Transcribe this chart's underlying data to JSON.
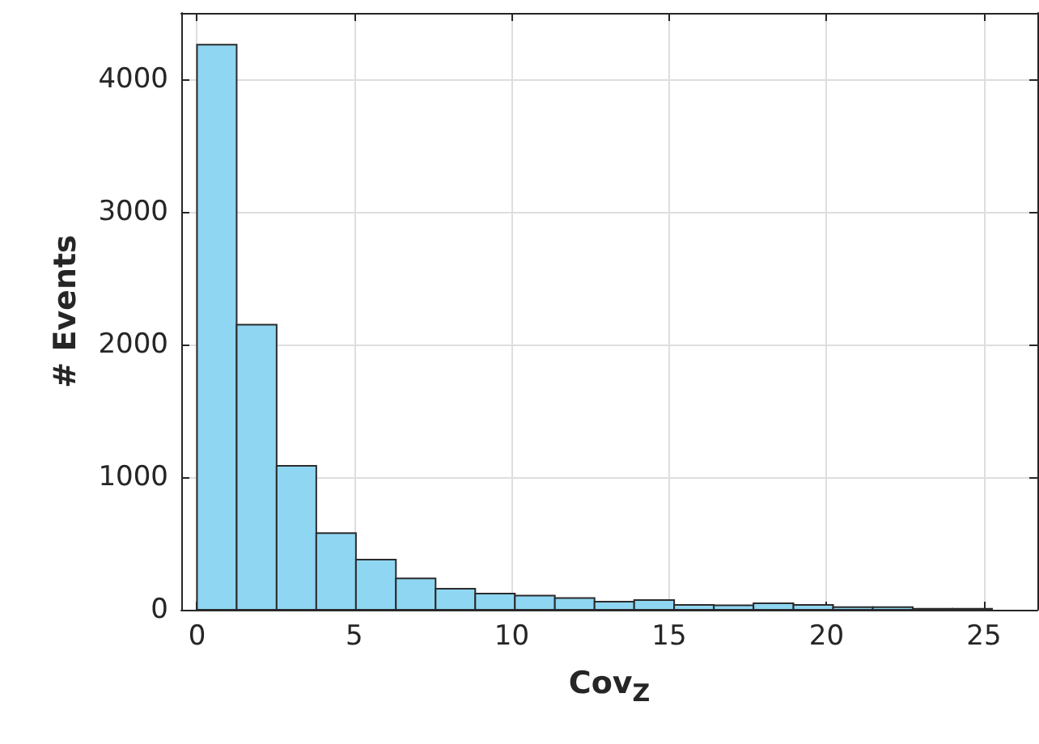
{
  "chart_data": {
    "type": "histogram",
    "xlabel": "Cov$_{Z}$",
    "ylabel": "# Events",
    "bins": [
      0,
      1.26,
      2.53,
      3.79,
      5.05,
      6.32,
      7.58,
      8.84,
      10.1,
      11.37,
      12.63,
      13.89,
      15.16,
      16.42,
      17.68,
      18.95,
      20.21,
      21.47,
      22.74,
      24,
      25.26
    ],
    "values": [
      4260,
      2150,
      1085,
      577,
      378,
      236,
      159,
      122,
      106,
      89,
      61,
      73,
      37,
      33,
      49,
      37,
      20,
      20,
      8,
      8
    ],
    "color": "#8fd6f2",
    "xlim": [
      -0.5,
      26.7
    ],
    "xticks": [
      0,
      5,
      10,
      15,
      20,
      25
    ],
    "ylim": [
      0,
      4500
    ],
    "yticks": [
      0,
      1000,
      2000,
      3000,
      4000
    ],
    "grid": true
  }
}
